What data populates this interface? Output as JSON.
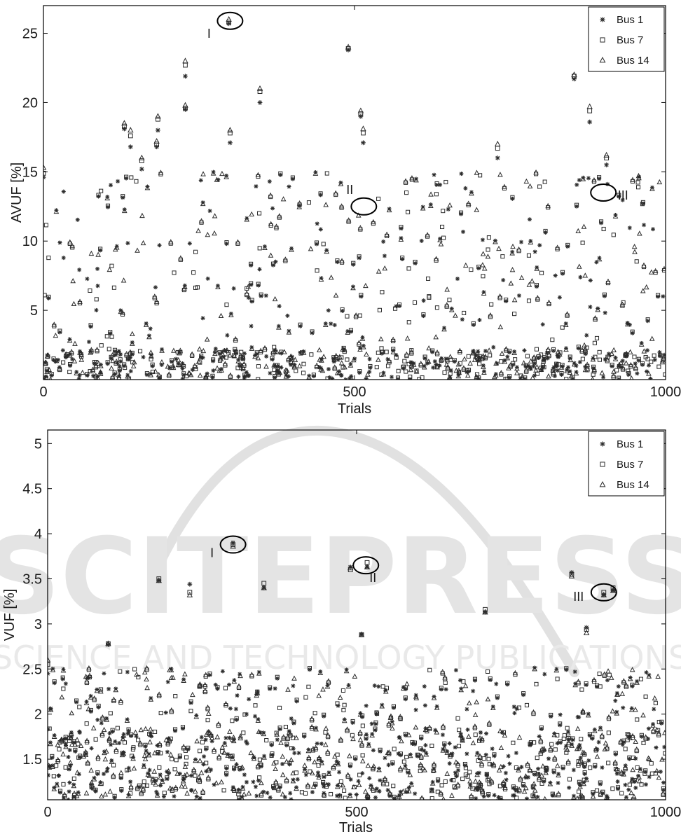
{
  "charts": [
    {
      "type": "scatter",
      "ylabel": "AVUF [%]",
      "xlabel": "Trials",
      "xlim": [
        0,
        1000
      ],
      "ylim": [
        0,
        27
      ],
      "xticks": [
        0,
        500,
        1000
      ],
      "yticks": [
        5,
        10,
        15,
        20,
        25
      ],
      "legend": {
        "position": "top-right",
        "entries": [
          "Bus 1",
          "Bus 7",
          "Bus 14"
        ]
      },
      "regions": [
        "I",
        "II",
        "III"
      ],
      "highlighted": [
        {
          "label": "I",
          "x": 300,
          "y": 25.9
        },
        {
          "label": "II",
          "x": 515,
          "y": 12.5
        },
        {
          "label": "III",
          "x": 900,
          "y": 13.5
        }
      ],
      "bands": [
        {
          "min": 0,
          "max": 2.2,
          "density": 0.55
        },
        {
          "min": 2.2,
          "max": 5.5,
          "density": 0.1
        },
        {
          "min": 5.5,
          "max": 10,
          "density": 0.16
        },
        {
          "min": 10,
          "max": 15,
          "density": 0.14
        }
      ],
      "outliers": [
        {
          "x": 0,
          "bus1": 14.6,
          "bus7": 14.9,
          "bus14": 15.3
        },
        {
          "x": 130,
          "bus1": 18.1,
          "bus7": 18.3,
          "bus14": 18.5
        },
        {
          "x": 140,
          "bus1": 16.8,
          "bus7": 17.6,
          "bus14": 18.0
        },
        {
          "x": 158,
          "bus1": 15.2,
          "bus7": 15.8,
          "bus14": 16.0
        },
        {
          "x": 182,
          "bus1": 16.8,
          "bus7": 17.0,
          "bus14": 17.2
        },
        {
          "x": 184,
          "bus1": 18.0,
          "bus7": 18.8,
          "bus14": 19.0
        },
        {
          "x": 228,
          "bus1": 21.9,
          "bus7": 22.7,
          "bus14": 23.0
        },
        {
          "x": 228,
          "bus1": 19.5,
          "bus7": 19.6,
          "bus14": 19.8
        },
        {
          "x": 298,
          "bus1": 25.7,
          "bus7": 25.8,
          "bus14": 26.0
        },
        {
          "x": 300,
          "bus1": 17.1,
          "bus7": 17.8,
          "bus14": 18.0
        },
        {
          "x": 348,
          "bus1": 20.0,
          "bus7": 20.8,
          "bus14": 21.0
        },
        {
          "x": 490,
          "bus1": 23.8,
          "bus7": 23.9,
          "bus14": 24.0
        },
        {
          "x": 510,
          "bus1": 19.0,
          "bus7": 19.2,
          "bus14": 19.4
        },
        {
          "x": 514,
          "bus1": 17.1,
          "bus7": 17.8,
          "bus14": 18.1
        },
        {
          "x": 730,
          "bus1": 16.0,
          "bus7": 16.7,
          "bus14": 17.0
        },
        {
          "x": 853,
          "bus1": 21.7,
          "bus7": 21.9,
          "bus14": 22.0
        },
        {
          "x": 878,
          "bus1": 18.6,
          "bus7": 19.4,
          "bus14": 19.7
        },
        {
          "x": 905,
          "bus1": 15.5,
          "bus7": 16.0,
          "bus14": 16.2
        }
      ]
    },
    {
      "type": "scatter",
      "ylabel": "VUF [%]",
      "xlabel": "Trials",
      "xlim": [
        0,
        1000
      ],
      "ylim": [
        1.05,
        5.15
      ],
      "xticks": [
        0,
        500,
        1000
      ],
      "yticks": [
        1.5,
        2,
        2.5,
        3,
        3.5,
        4,
        4.5,
        5
      ],
      "legend": {
        "position": "top-right",
        "entries": [
          "Bus 1",
          "Bus 7",
          "Bus 14"
        ]
      },
      "regions": [
        "I",
        "II",
        "III"
      ],
      "highlighted": [
        {
          "label": "I",
          "x": 300,
          "y": 3.88
        },
        {
          "label": "II",
          "x": 515,
          "y": 3.65
        },
        {
          "label": "III",
          "x": 900,
          "y": 3.35
        }
      ],
      "bands": [
        {
          "min": 1.05,
          "max": 1.6,
          "density": 0.6
        },
        {
          "min": 1.6,
          "max": 1.85,
          "density": 0.25
        },
        {
          "min": 1.85,
          "max": 2.3,
          "density": 0.16
        },
        {
          "min": 2.3,
          "max": 2.5,
          "density": 0.1
        }
      ],
      "outliers": [
        {
          "x": 0,
          "bus1": 2.45,
          "bus7": 2.55,
          "bus14": 2.6
        },
        {
          "x": 98,
          "bus1": 2.77,
          "bus7": 2.78,
          "bus14": 2.78
        },
        {
          "x": 180,
          "bus1": 3.48,
          "bus7": 3.5,
          "bus14": 3.48
        },
        {
          "x": 230,
          "bus1": 3.44,
          "bus7": 3.35,
          "bus14": 3.32
        },
        {
          "x": 300,
          "bus1": 3.9,
          "bus7": 3.88,
          "bus14": 3.86
        },
        {
          "x": 350,
          "bus1": 3.4,
          "bus7": 3.45,
          "bus14": 3.4
        },
        {
          "x": 490,
          "bus1": 3.63,
          "bus7": 3.6,
          "bus14": 3.62
        },
        {
          "x": 508,
          "bus1": 2.88,
          "bus7": 2.88,
          "bus14": 2.88
        },
        {
          "x": 517,
          "bus1": 3.63,
          "bus7": 3.68,
          "bus14": 3.63
        },
        {
          "x": 708,
          "bus1": 3.13,
          "bus7": 3.16,
          "bus14": 3.13
        },
        {
          "x": 848,
          "bus1": 3.57,
          "bus7": 3.55,
          "bus14": 3.53
        },
        {
          "x": 872,
          "bus1": 2.96,
          "bus7": 2.94,
          "bus14": 2.9
        },
        {
          "x": 900,
          "bus1": 3.32,
          "bus7": 3.35,
          "bus14": 3.32
        },
        {
          "x": 915,
          "bus1": 3.37,
          "bus7": 3.4,
          "bus14": 3.37
        }
      ]
    }
  ],
  "watermark": {
    "main": "SCITEPRESS",
    "sub": "SCIENCE AND TECHNOLOGY PUBLICATIONS",
    "color": "#dcdcdc"
  },
  "colors": {
    "marker": "#2b2b2b",
    "axis": "#000000",
    "background": "#ffffff"
  }
}
